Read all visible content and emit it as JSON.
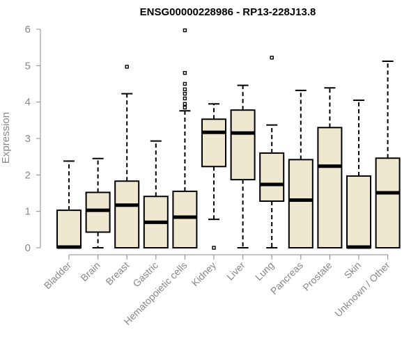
{
  "chart_data": {
    "type": "boxplot",
    "title": "ENSG00000228986 - RP13-228J13.8",
    "xlabel": "",
    "ylabel": "Expression",
    "ylim": [
      0,
      6
    ],
    "yticks": [
      0,
      1,
      2,
      3,
      4,
      5,
      6
    ],
    "box_color": "#efe8d0",
    "categories": [
      "Bladder",
      "Brain",
      "Breast",
      "Gastric",
      "Hematopoietic cells",
      "Kidney",
      "Liver",
      "Lung",
      "Pancreas",
      "Prostate",
      "Skin",
      "Unknown / Other"
    ],
    "boxes": [
      {
        "min": 0.0,
        "q1": 0.0,
        "median": 0.02,
        "q3": 1.03,
        "max": 2.38,
        "outliers": []
      },
      {
        "min": 0.0,
        "q1": 0.43,
        "median": 1.03,
        "q3": 1.52,
        "max": 2.45,
        "outliers": []
      },
      {
        "min": 0.0,
        "q1": 0.0,
        "median": 1.17,
        "q3": 1.83,
        "max": 4.23,
        "outliers": [
          4.97
        ]
      },
      {
        "min": 0.0,
        "q1": 0.0,
        "median": 0.7,
        "q3": 1.41,
        "max": 2.93,
        "outliers": []
      },
      {
        "min": 0.0,
        "q1": 0.0,
        "median": 0.84,
        "q3": 1.55,
        "max": 3.76,
        "outliers": [
          3.85,
          3.95,
          4.1,
          4.23,
          4.35,
          4.5,
          4.8,
          5.97
        ]
      },
      {
        "min": 0.78,
        "q1": 2.23,
        "median": 3.17,
        "q3": 3.53,
        "max": 3.95,
        "outliers": [
          0.0
        ]
      },
      {
        "min": 0.0,
        "q1": 1.87,
        "median": 3.15,
        "q3": 3.78,
        "max": 4.46,
        "outliers": []
      },
      {
        "min": 0.0,
        "q1": 1.28,
        "median": 1.74,
        "q3": 2.6,
        "max": 3.37,
        "outliers": [
          5.22
        ]
      },
      {
        "min": 0.0,
        "q1": 0.0,
        "median": 1.31,
        "q3": 2.42,
        "max": 4.32,
        "outliers": []
      },
      {
        "min": 0.0,
        "q1": 0.0,
        "median": 2.24,
        "q3": 3.3,
        "max": 4.39,
        "outliers": []
      },
      {
        "min": 0.0,
        "q1": 0.0,
        "median": 0.02,
        "q3": 1.97,
        "max": 4.05,
        "outliers": []
      },
      {
        "min": 0.0,
        "q1": 0.0,
        "median": 1.51,
        "q3": 2.46,
        "max": 5.12,
        "outliers": []
      }
    ]
  }
}
